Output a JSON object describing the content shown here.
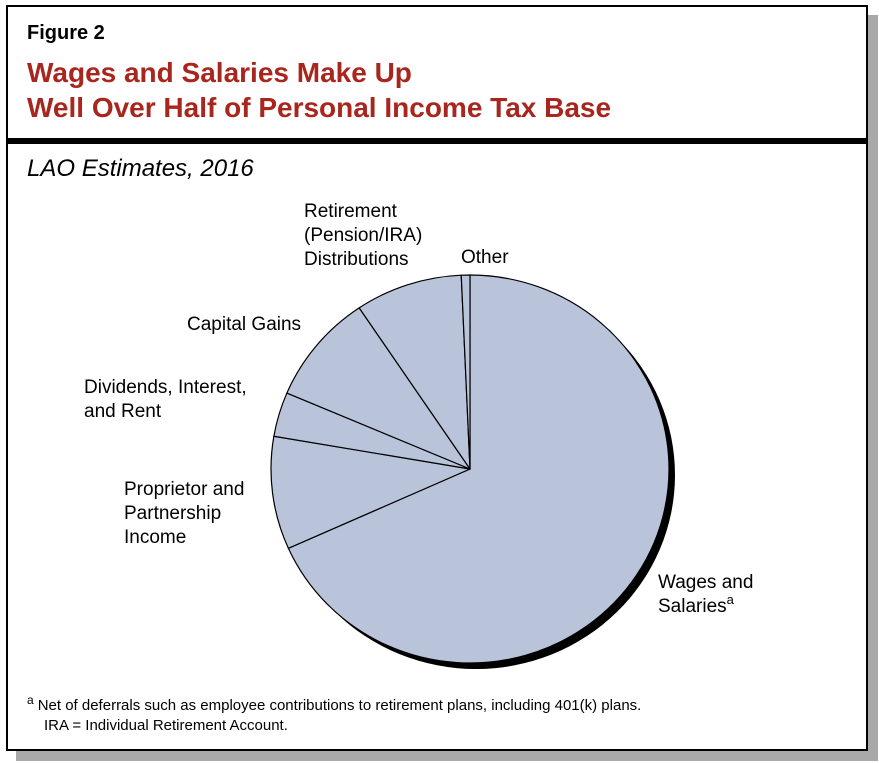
{
  "figure_label": "Figure 2",
  "title_line1": "Wages and Salaries Make Up",
  "title_line2": "Well Over Half of Personal Income Tax Base",
  "subtitle": "LAO Estimates, 2016",
  "colors": {
    "title": "#a8261d",
    "slice_fill": "#b9c4da",
    "outline": "#000000",
    "pie_shadow": "#000000",
    "frame_shadow": "#a9a9a9"
  },
  "chart_data": {
    "type": "pie",
    "title": "",
    "unit": "percent of personal income tax base",
    "slices": [
      {
        "label_lines": [
          "Wages and",
          "Salaries"
        ],
        "label_superscript": "a",
        "value": 68.3
      },
      {
        "label_lines": [
          "Proprietor and",
          "Partnership",
          "Income"
        ],
        "value": 9.4
      },
      {
        "label_lines": [
          "Dividends, Interest,",
          "and Rent"
        ],
        "value": 3.7
      },
      {
        "label_lines": [
          "Capital Gains"
        ],
        "value": 9.2
      },
      {
        "label_lines": [
          "Retirement",
          "(Pension/IRA)",
          "Distributions"
        ],
        "value": 8.7
      },
      {
        "label_lines": [
          "Other"
        ],
        "value": 0.7
      }
    ],
    "start": "12 o'clock",
    "direction": "clockwise"
  },
  "footnote": {
    "marker": "a",
    "line1": "Net of deferrals such as employee contributions to retirement plans, including 401(k) plans.",
    "line2": "IRA = Individual Retirement Account."
  }
}
